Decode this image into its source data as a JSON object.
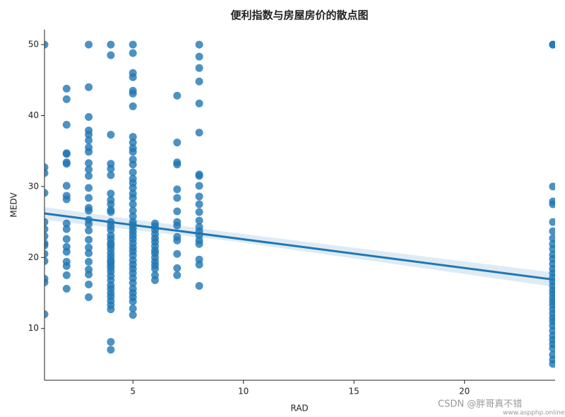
{
  "chart_data": {
    "type": "scatter",
    "title": "便利指数与房屋房价的散点图",
    "xlabel": "RAD",
    "ylabel": "MEDV",
    "color": "#1f77b4",
    "xlim": [
      1,
      24.1
    ],
    "ylim": [
      2.7,
      52.1
    ],
    "xticks": [
      5,
      10,
      15,
      20
    ],
    "yticks": [
      10,
      20,
      30,
      40,
      50
    ],
    "x": [
      1,
      1,
      1,
      1,
      1,
      1,
      1,
      1,
      1,
      1,
      1,
      1,
      1,
      1,
      2,
      2,
      2,
      2,
      2,
      2,
      2,
      2,
      2,
      2,
      2,
      2,
      2,
      2,
      2,
      2,
      2,
      2,
      2,
      3,
      3,
      3,
      3,
      3,
      3,
      3,
      3,
      3,
      3,
      3,
      3,
      3,
      3,
      3,
      3,
      3,
      3,
      3,
      3,
      3,
      3,
      3,
      3,
      3,
      3,
      4,
      4,
      4,
      4,
      4,
      4,
      4,
      4,
      4,
      4,
      4,
      4,
      4,
      4,
      4,
      4,
      4,
      4,
      4,
      4,
      4,
      4,
      4,
      4,
      4,
      4,
      4,
      4,
      4,
      4,
      4,
      4,
      4,
      4,
      4,
      4,
      4,
      5,
      5,
      5,
      5,
      5,
      5,
      5,
      5,
      5,
      5,
      5,
      5,
      5,
      5,
      5,
      5,
      5,
      5,
      5,
      5,
      5,
      5,
      5,
      5,
      5,
      5,
      5,
      5,
      5,
      5,
      5,
      5,
      5,
      5,
      5,
      5,
      5,
      5,
      5,
      5,
      5,
      5,
      5,
      5,
      6,
      6,
      6,
      6,
      6,
      6,
      6,
      6,
      6,
      6,
      6,
      6,
      6,
      6,
      6,
      7,
      7,
      7,
      7,
      7,
      7,
      7,
      7,
      7,
      7,
      7,
      7,
      7,
      7,
      8,
      8,
      8,
      8,
      8,
      8,
      8,
      8,
      8,
      8,
      8,
      8,
      8,
      8,
      8,
      8,
      8,
      8,
      8,
      8,
      8,
      24,
      24,
      24,
      24,
      24,
      24,
      24,
      24,
      24,
      24,
      24,
      24,
      24,
      24,
      24,
      24,
      24,
      24,
      24,
      24,
      24,
      24,
      24,
      24,
      24,
      24,
      24,
      24,
      24,
      24,
      24,
      24,
      24,
      24,
      24,
      24
    ],
    "values": [
      50,
      32.7,
      31.9,
      29.1,
      25,
      24,
      23,
      22,
      21.7,
      20.5,
      19.5,
      17,
      16.5,
      12,
      43.8,
      42.3,
      38.7,
      34.7,
      34.6,
      33.4,
      33.2,
      30.1,
      28.7,
      28.2,
      24.8,
      24,
      22.6,
      21.5,
      20.8,
      19.4,
      18.8,
      17.5,
      15.6,
      50,
      44,
      39.8,
      37.9,
      37.3,
      36.5,
      35.5,
      34.9,
      33.3,
      32.4,
      31.5,
      29.8,
      28.4,
      27,
      26.6,
      25.3,
      24.7,
      23.8,
      22.5,
      21.4,
      20.6,
      19.4,
      18.3,
      17.6,
      16.2,
      14.4,
      50,
      48.5,
      37.3,
      33.2,
      32.5,
      31.6,
      29,
      28.1,
      27.5,
      26.7,
      26.4,
      25,
      24.4,
      23.9,
      23.1,
      22.6,
      22,
      21.7,
      21.2,
      20.6,
      20.1,
      19.6,
      19.3,
      18.9,
      18.5,
      18,
      17.4,
      16.8,
      16.1,
      15.6,
      15,
      14.5,
      13.9,
      13.3,
      12.7,
      8.1,
      7,
      50,
      48.8,
      46,
      45.4,
      43.5,
      43.1,
      41.3,
      37,
      36.2,
      35.4,
      34.9,
      33.8,
      33.1,
      32,
      31.1,
      30.5,
      29.8,
      29,
      28.4,
      27.5,
      26.6,
      25.8,
      25,
      24.6,
      24.1,
      23.6,
      23.1,
      22.6,
      22,
      21.4,
      20.9,
      20.3,
      19.6,
      19,
      18.4,
      17.8,
      17.1,
      16.4,
      15.6,
      15,
      14.4,
      13.8,
      12.8,
      11.9,
      24.8,
      24.4,
      23.9,
      23.3,
      22.7,
      22.2,
      21.6,
      21,
      20.6,
      20,
      19.4,
      18.9,
      18.4,
      17.5,
      16.8,
      42.8,
      36.2,
      33.4,
      33.1,
      29.6,
      28.4,
      26.5,
      25,
      24.5,
      22.9,
      22.4,
      20.5,
      18.5,
      17.5,
      50,
      48.3,
      46.7,
      44.8,
      41.7,
      37.6,
      31.7,
      31.5,
      30.1,
      28.6,
      27.5,
      26.4,
      25.2,
      24.3,
      23.7,
      23.1,
      22.4,
      21.9,
      19.7,
      19,
      16,
      50,
      50,
      30,
      27.9,
      27.5,
      25,
      23.7,
      22.7,
      21.9,
      21.2,
      20.4,
      19.8,
      19.1,
      18.4,
      17.8,
      17.2,
      16.6,
      16,
      15.4,
      14.9,
      14.3,
      13.8,
      13.3,
      12.7,
      12.1,
      11.5,
      11,
      10.4,
      9.7,
      9,
      8.4,
      7.8,
      7.2,
      6.3,
      5.6,
      5
    ],
    "regression": {
      "x": [
        1,
        24
      ],
      "values": [
        26.2,
        16.9
      ]
    },
    "ci": {
      "x": [
        1,
        9.5,
        24
      ],
      "lower": [
        25.3,
        22.3,
        15.9
      ],
      "upper": [
        27.1,
        23.5,
        17.9
      ]
    },
    "watermark": [
      "CSDN @胖哥真不错",
      "www.aspphp.online"
    ]
  }
}
